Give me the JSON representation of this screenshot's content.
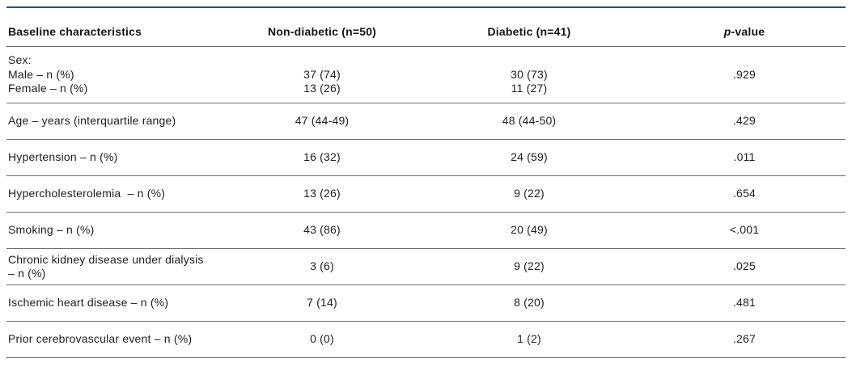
{
  "table": {
    "header": {
      "baseline": "Baseline characteristics",
      "non_diabetic": "Non-diabetic (n=50)",
      "diabetic": "Diabetic (n=41)",
      "p_value_italic": "p",
      "p_value_rest": "-value"
    },
    "rows": [
      {
        "label": "Sex:\nMale – n (%)\nFemale – n (%)",
        "non_diabetic": " \n37 (74)\n13 (26)",
        "diabetic": " \n30 (73)\n11 (27)",
        "p_value": " \n.929\n "
      },
      {
        "label": "Age – years (interquartile range)",
        "non_diabetic": "47 (44-49)",
        "diabetic": "48 (44-50)",
        "p_value": ".429"
      },
      {
        "label": "Hypertension – n (%)",
        "non_diabetic": "16 (32)",
        "diabetic": "24 (59)",
        "p_value": ".011"
      },
      {
        "label": "Hypercholesterolemia  – n (%)",
        "non_diabetic": "13 (26)",
        "diabetic": "9 (22)",
        "p_value": ".654"
      },
      {
        "label": "Smoking – n (%)",
        "non_diabetic": "43 (86)",
        "diabetic": "20 (49)",
        "p_value": "<.001"
      },
      {
        "label": "Chronic kidney disease under dialysis\n– n (%)",
        "non_diabetic": "3 (6)",
        "diabetic": "9 (22)",
        "p_value": ".025"
      },
      {
        "label": "Ischemic heart disease – n (%)",
        "non_diabetic": "7 (14)",
        "diabetic": "8 (20)",
        "p_value": ".481"
      },
      {
        "label": "Prior cerebrovascular event – n (%)",
        "non_diabetic": "0 (0)",
        "diabetic": "1 (2)",
        "p_value": ".267"
      }
    ],
    "colors": {
      "top_rule": "#2f5166",
      "row_rule": "#6f6f6f",
      "text": "#1e1e1e"
    }
  }
}
